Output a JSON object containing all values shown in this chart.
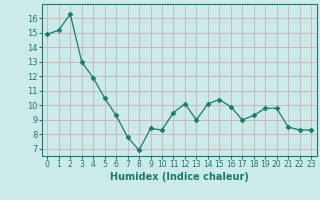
{
  "x": [
    0,
    1,
    2,
    3,
    4,
    5,
    6,
    7,
    8,
    9,
    10,
    11,
    12,
    13,
    14,
    15,
    16,
    17,
    18,
    19,
    20,
    21,
    22,
    23
  ],
  "y": [
    14.9,
    15.2,
    16.3,
    13.0,
    11.9,
    10.5,
    9.3,
    7.8,
    6.9,
    8.4,
    8.3,
    9.5,
    10.1,
    9.0,
    10.1,
    10.4,
    9.9,
    9.0,
    9.3,
    9.8,
    9.8,
    8.5,
    8.3,
    8.3
  ],
  "line_color": "#1a7a6e",
  "marker": "D",
  "marker_size": 2.5,
  "bg_color": "#cceaea",
  "grid_color_major": "#c8a8a8",
  "grid_color_minor": "#c8a8a8",
  "xlabel": "Humidex (Indice chaleur)",
  "xlim": [
    -0.5,
    23.5
  ],
  "ylim": [
    6.5,
    17.0
  ],
  "yticks": [
    7,
    8,
    9,
    10,
    11,
    12,
    13,
    14,
    15,
    16
  ],
  "xtick_labels": [
    "0",
    "1",
    "2",
    "3",
    "4",
    "5",
    "6",
    "7",
    "8",
    "9",
    "10",
    "11",
    "12",
    "13",
    "14",
    "15",
    "16",
    "17",
    "18",
    "19",
    "20",
    "21",
    "22",
    "23"
  ],
  "xlabel_fontsize": 7,
  "tick_fontsize": 5.5,
  "ytick_fontsize": 6
}
